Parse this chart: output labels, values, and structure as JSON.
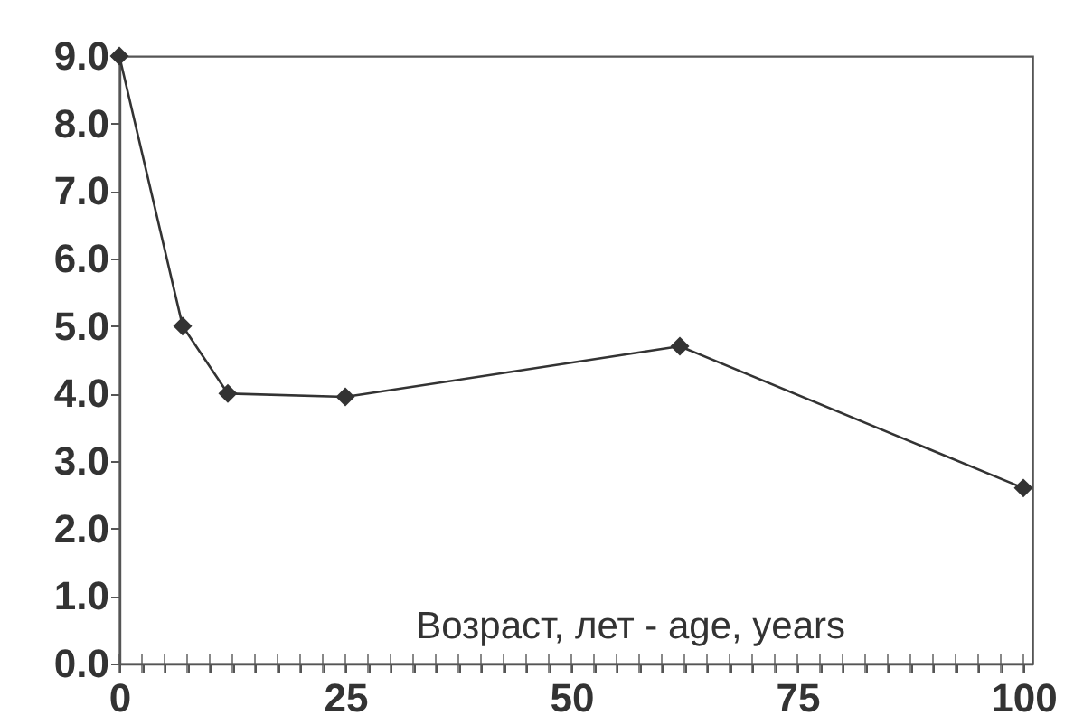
{
  "chart_data": {
    "type": "line",
    "xlabel": "Возраст,  лет - age,  years",
    "x": [
      0,
      7,
      12,
      25,
      62,
      100
    ],
    "series": [
      {
        "color": "#333333",
        "values": [
          9.0,
          5.0,
          4.0,
          3.95,
          4.7,
          2.6
        ]
      }
    ],
    "marker": "diamond",
    "line_style": "solid",
    "grid": false,
    "xlim": [
      0,
      101
    ],
    "ylim": [
      0,
      9
    ],
    "xticks": [
      0,
      {
        "value": 2.5,
        "label": null
      },
      {
        "value": 5,
        "label": null
      },
      {
        "value": 7.5,
        "label": null
      },
      {
        "value": 10,
        "label": null
      },
      {
        "value": 12.5,
        "label": null
      },
      {
        "value": 15,
        "label": null
      },
      {
        "value": 17.5,
        "label": null
      },
      {
        "value": 20,
        "label": null
      },
      {
        "value": 22.5,
        "label": null
      },
      25,
      {
        "value": 27.5,
        "label": null
      },
      {
        "value": 30,
        "label": null
      },
      {
        "value": 32.5,
        "label": null
      },
      {
        "value": 35,
        "label": null
      },
      {
        "value": 37.5,
        "label": null
      },
      {
        "value": 40,
        "label": null
      },
      {
        "value": 42.5,
        "label": null
      },
      {
        "value": 45,
        "label": null
      },
      {
        "value": 47.5,
        "label": null
      },
      50,
      {
        "value": 52.5,
        "label": null
      },
      {
        "value": 55,
        "label": null
      },
      {
        "value": 57.5,
        "label": null
      },
      {
        "value": 60,
        "label": null
      },
      {
        "value": 62.5,
        "label": null
      },
      {
        "value": 65,
        "label": null
      },
      {
        "value": 67.5,
        "label": null
      },
      {
        "value": 70,
        "label": null
      },
      {
        "value": 72.5,
        "label": null
      },
      75,
      {
        "value": 77.5,
        "label": null
      },
      {
        "value": 80,
        "label": null
      },
      {
        "value": 82.5,
        "label": null
      },
      {
        "value": 85,
        "label": null
      },
      {
        "value": 87.5,
        "label": null
      },
      {
        "value": 90,
        "label": null
      },
      {
        "value": 92.5,
        "label": null
      },
      {
        "value": 95,
        "label": null
      },
      {
        "value": 97.5,
        "label": null
      },
      100
    ],
    "yticks": [
      {
        "value": 0,
        "label": "0.0"
      },
      {
        "value": 1,
        "label": "1.0"
      },
      {
        "value": 2,
        "label": "2.0"
      },
      {
        "value": 3,
        "label": "3.0"
      },
      {
        "value": 4,
        "label": "4.0"
      },
      {
        "value": 5,
        "label": "5.0"
      },
      {
        "value": 6,
        "label": "6.0"
      },
      {
        "value": 7,
        "label": "7.0"
      },
      {
        "value": 8,
        "label": "8.0"
      },
      {
        "value": 9,
        "label": "9.0"
      }
    ]
  }
}
